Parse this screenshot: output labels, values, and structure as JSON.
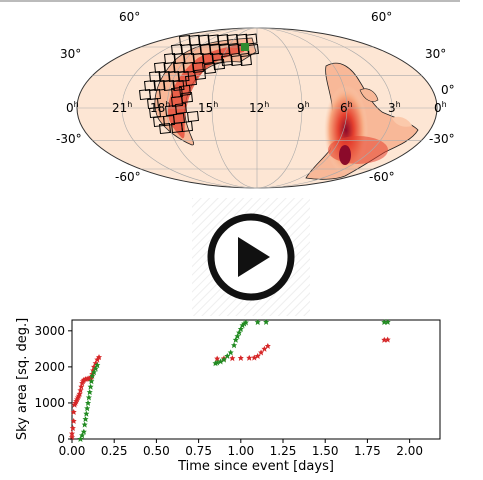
{
  "sky_map": {
    "lat_labels": {
      "top_left": "60°",
      "top_right": "60°",
      "mid_upper_left": "30°",
      "mid_upper_right": "30°",
      "equator_right": "0°",
      "mid_lower_left": "-30°",
      "mid_lower_right": "-30°",
      "bottom_left": "-60°",
      "bottom_right": "-60°"
    },
    "ra_labels": [
      {
        "id": "ra-0-left",
        "h": "0"
      },
      {
        "id": "ra-21",
        "h": "21"
      },
      {
        "id": "ra-18",
        "h": "18"
      },
      {
        "id": "ra-15",
        "h": "15"
      },
      {
        "id": "ra-12",
        "h": "12"
      },
      {
        "id": "ra-9",
        "h": "9"
      },
      {
        "id": "ra-6",
        "h": "6"
      },
      {
        "id": "ra-3",
        "h": "3"
      },
      {
        "id": "ra-0-right",
        "h": "0"
      }
    ],
    "hour_suffix": "h",
    "colors": {
      "background": "#fde6d4",
      "mid": "#f7a880",
      "hot": "#e5412f",
      "peak": "#8b0a2a",
      "tile_edge": "#000000",
      "tile_observed": "#2e8b2e"
    }
  },
  "play_button": {
    "icon": "play-icon"
  },
  "chart_data": {
    "type": "scatter",
    "title": "",
    "xlabel": "Time since event [days]",
    "ylabel": "Sky area [sq. deg.]",
    "xlim": [
      0,
      2.18
    ],
    "ylim": [
      0,
      3300
    ],
    "xticks": [
      "0.00",
      "0.25",
      "0.50",
      "0.75",
      "1.00",
      "1.25",
      "1.50",
      "1.75",
      "2.00"
    ],
    "xtick_values": [
      0,
      0.25,
      0.5,
      0.75,
      1.0,
      1.25,
      1.5,
      1.75,
      2.0
    ],
    "yticks": [
      "0",
      "1000",
      "2000",
      "3000"
    ],
    "ytick_values": [
      0,
      1000,
      2000,
      3000
    ],
    "grid": false,
    "series": [
      {
        "color": "#d62728",
        "points": [
          [
            0.0,
            50
          ],
          [
            0.0,
            150
          ],
          [
            0.005,
            300
          ],
          [
            0.01,
            500
          ],
          [
            0.01,
            750
          ],
          [
            0.015,
            950
          ],
          [
            0.02,
            1000
          ],
          [
            0.025,
            1050
          ],
          [
            0.03,
            1100
          ],
          [
            0.035,
            1150
          ],
          [
            0.04,
            1200
          ],
          [
            0.045,
            1250
          ],
          [
            0.05,
            1350
          ],
          [
            0.055,
            1450
          ],
          [
            0.06,
            1550
          ],
          [
            0.065,
            1600
          ],
          [
            0.07,
            1640
          ],
          [
            0.08,
            1660
          ],
          [
            0.09,
            1670
          ],
          [
            0.1,
            1680
          ],
          [
            0.11,
            1690
          ],
          [
            0.115,
            1720
          ],
          [
            0.12,
            1800
          ],
          [
            0.125,
            1900
          ],
          [
            0.13,
            2000
          ],
          [
            0.14,
            2100
          ],
          [
            0.15,
            2200
          ],
          [
            0.16,
            2270
          ],
          [
            0.86,
            2230
          ],
          [
            0.9,
            2235
          ],
          [
            0.95,
            2240
          ],
          [
            1.0,
            2245
          ],
          [
            1.05,
            2250
          ],
          [
            1.08,
            2255
          ],
          [
            1.1,
            2300
          ],
          [
            1.12,
            2400
          ],
          [
            1.14,
            2500
          ],
          [
            1.16,
            2580
          ],
          [
            1.85,
            2750
          ],
          [
            1.87,
            2755
          ]
        ]
      },
      {
        "color": "#228b22",
        "points": [
          [
            0.05,
            0
          ],
          [
            0.06,
            100
          ],
          [
            0.07,
            200
          ],
          [
            0.075,
            400
          ],
          [
            0.08,
            550
          ],
          [
            0.085,
            700
          ],
          [
            0.09,
            850
          ],
          [
            0.095,
            1000
          ],
          [
            0.1,
            1150
          ],
          [
            0.105,
            1300
          ],
          [
            0.11,
            1450
          ],
          [
            0.115,
            1600
          ],
          [
            0.12,
            1750
          ],
          [
            0.13,
            1850
          ],
          [
            0.14,
            1950
          ],
          [
            0.15,
            2050
          ],
          [
            0.85,
            2100
          ],
          [
            0.86,
            2120
          ],
          [
            0.88,
            2150
          ],
          [
            0.9,
            2200
          ],
          [
            0.92,
            2300
          ],
          [
            0.94,
            2400
          ],
          [
            0.96,
            2600
          ],
          [
            0.97,
            2750
          ],
          [
            0.98,
            2850
          ],
          [
            0.99,
            2950
          ],
          [
            1.0,
            3050
          ],
          [
            1.01,
            3150
          ],
          [
            1.02,
            3200
          ],
          [
            1.03,
            3230
          ],
          [
            1.1,
            3240
          ],
          [
            1.15,
            3245
          ],
          [
            1.85,
            3240
          ],
          [
            1.87,
            3245
          ]
        ]
      }
    ]
  }
}
